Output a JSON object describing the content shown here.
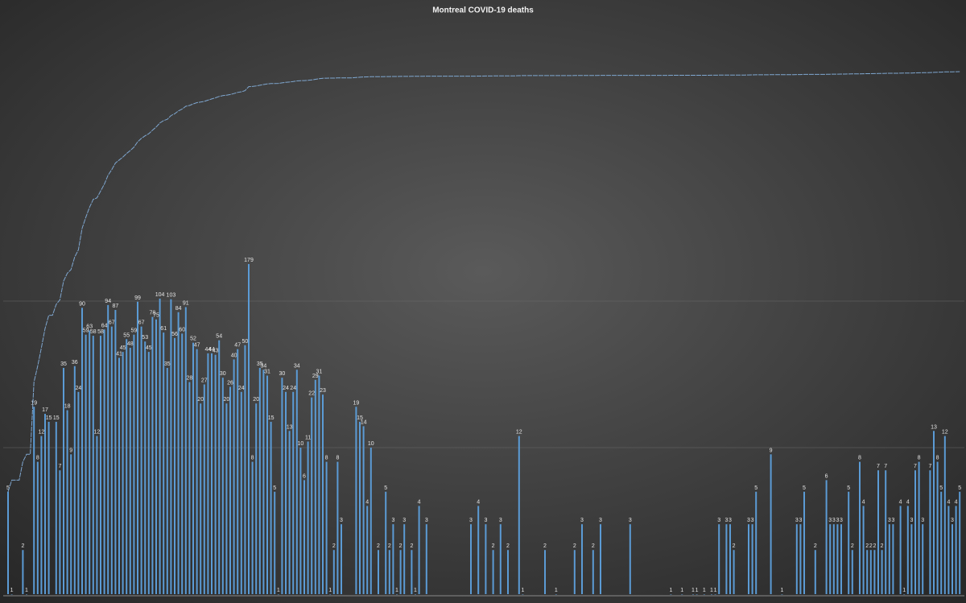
{
  "chart_data": {
    "type": "bar",
    "title": "Montreal COVID-19 deaths",
    "log_scale": true,
    "ylim": [
      1,
      10000
    ],
    "gridlines": [
      10,
      100
    ],
    "series": [
      {
        "type": "bar",
        "color": "#5b9bd5",
        "values": [
          5,
          1,
          null,
          null,
          2,
          1,
          null,
          19,
          8,
          12,
          17,
          15,
          null,
          15,
          7,
          35,
          18,
          9,
          36,
          24,
          90,
          59,
          63,
          58,
          12,
          58,
          64,
          94,
          67,
          87,
          41,
          45,
          55,
          48,
          59,
          99,
          67,
          53,
          45,
          78,
          75,
          104,
          61,
          35,
          103,
          56,
          84,
          60,
          91,
          28,
          52,
          47,
          20,
          27,
          44,
          44,
          43,
          54,
          30,
          20,
          26,
          40,
          47,
          24,
          50,
          179,
          8,
          20,
          35,
          34,
          31,
          15,
          5,
          1,
          30,
          24,
          13,
          24,
          34,
          10,
          6,
          11,
          22,
          29,
          31,
          23,
          8,
          1,
          2,
          8,
          3,
          null,
          null,
          null,
          19,
          15,
          14,
          4,
          10,
          null,
          2,
          null,
          5,
          2,
          3,
          1,
          2,
          3,
          null,
          2,
          1,
          4,
          null,
          3,
          null,
          null,
          null,
          null,
          null,
          null,
          null,
          null,
          null,
          null,
          null,
          3,
          null,
          4,
          null,
          3,
          null,
          2,
          null,
          3,
          null,
          2,
          null,
          null,
          12,
          1,
          null,
          null,
          null,
          null,
          null,
          2,
          null,
          null,
          1,
          null,
          null,
          null,
          null,
          2,
          null,
          3,
          null,
          null,
          2,
          null,
          3,
          null,
          null,
          null,
          null,
          null,
          null,
          null,
          3,
          null,
          null,
          null,
          null,
          null,
          null,
          null,
          null,
          null,
          null,
          1,
          null,
          null,
          1,
          null,
          null,
          1,
          1,
          null,
          1,
          null,
          1,
          1,
          3,
          null,
          3,
          3,
          2,
          null,
          null,
          null,
          3,
          3,
          5,
          null,
          null,
          null,
          9,
          null,
          null,
          1,
          null,
          null,
          null,
          3,
          3,
          5,
          null,
          null,
          2,
          null,
          null,
          6,
          3,
          3,
          3,
          3,
          null,
          5,
          2,
          null,
          8,
          4,
          2,
          2,
          2,
          7,
          2,
          7,
          3,
          3,
          null,
          4,
          1,
          4,
          3,
          7,
          8,
          3,
          null,
          7,
          13,
          8,
          5,
          12,
          4,
          3,
          4,
          5
        ]
      },
      {
        "type": "line",
        "color": "#7fa7d0",
        "values": [
          5,
          6,
          6,
          6,
          8,
          9,
          9,
          28,
          36,
          48,
          65,
          80,
          80,
          95,
          102,
          137,
          155,
          164,
          200,
          224,
          314,
          373,
          436,
          494,
          506,
          564,
          628,
          722,
          789,
          876,
          917,
          962,
          1017,
          1065,
          1124,
          1223,
          1290,
          1343,
          1388,
          1466,
          1541,
          1645,
          1706,
          1741,
          1844,
          1900,
          1984,
          2044,
          2135,
          2163,
          2215,
          2262,
          2282,
          2309,
          2353,
          2397,
          2440,
          2494,
          2524,
          2544,
          2570,
          2610,
          2657,
          2681,
          2731,
          2910,
          2918,
          2938,
          2973,
          3007,
          3038,
          3053,
          3058,
          3059,
          3089,
          3113,
          3126,
          3150,
          3184,
          3194,
          3200,
          3211,
          3233,
          3262,
          3293,
          3316,
          3324,
          3325,
          3327,
          3335,
          3338,
          3338,
          3338,
          3338,
          3357,
          3372,
          3386,
          3390,
          3400,
          3400,
          3402,
          3402,
          3407,
          3409,
          3412,
          3413,
          3415,
          3418,
          3418,
          3420,
          3421,
          3425,
          3425,
          3428,
          3428,
          3428,
          3428,
          3428,
          3428,
          3428,
          3428,
          3428,
          3428,
          3428,
          3428,
          3431,
          3431,
          3435,
          3435,
          3438,
          3438,
          3440,
          3440,
          3443,
          3443,
          3445,
          3445,
          3445,
          3457,
          3458,
          3458,
          3458,
          3458,
          3458,
          3458,
          3460,
          3460,
          3460,
          3461,
          3461,
          3461,
          3461,
          3461,
          3463,
          3463,
          3466,
          3466,
          3466,
          3468,
          3468,
          3471,
          3471,
          3471,
          3471,
          3471,
          3471,
          3471,
          3471,
          3474,
          3474,
          3474,
          3474,
          3474,
          3474,
          3474,
          3474,
          3474,
          3474,
          3474,
          3475,
          3475,
          3475,
          3476,
          3476,
          3476,
          3477,
          3478,
          3478,
          3479,
          3479,
          3480,
          3481,
          3484,
          3484,
          3487,
          3490,
          3492,
          3492,
          3492,
          3492,
          3495,
          3498,
          3503,
          3503,
          3503,
          3503,
          3512,
          3512,
          3512,
          3513,
          3513,
          3513,
          3513,
          3516,
          3519,
          3524,
          3524,
          3524,
          3526,
          3526,
          3526,
          3532,
          3535,
          3538,
          3541,
          3544,
          3544,
          3549,
          3551,
          3551,
          3559,
          3563,
          3565,
          3567,
          3569,
          3576,
          3578,
          3585,
          3588,
          3591,
          3591,
          3595,
          3596,
          3600,
          3603,
          3610,
          3618,
          3621,
          3621,
          3628,
          3641,
          3649,
          3654,
          3666,
          3670,
          3673,
          3677,
          3682
        ]
      }
    ]
  }
}
